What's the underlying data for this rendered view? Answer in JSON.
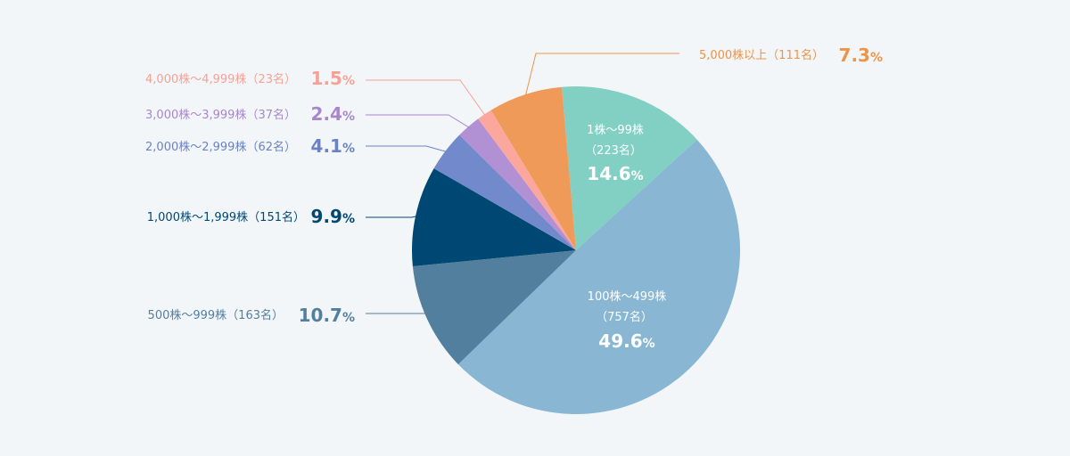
{
  "chart_data": {
    "type": "pie",
    "title": "",
    "start_angle_deg": -5,
    "direction": "clockwise",
    "slices": [
      {
        "key": "s1",
        "name": "1株～99株",
        "count": "（223名）",
        "value": 14.6,
        "pct_label": "14.6",
        "unit": "%",
        "color": "#82d0c4",
        "label_color": "#ffffff",
        "placement": "inside"
      },
      {
        "key": "s2",
        "name": "100株～499株",
        "count": "（757名）",
        "value": 49.6,
        "pct_label": "49.6",
        "unit": "%",
        "color": "#88b6d3",
        "label_color": "#ffffff",
        "placement": "inside"
      },
      {
        "key": "s3",
        "name": "500株～999株（163名）",
        "count": "",
        "value": 10.7,
        "pct_label": "10.7",
        "unit": "%",
        "color": "#527f9e",
        "label_color": "#527f9e",
        "placement": "outside-left"
      },
      {
        "key": "s4",
        "name": "1,000株～1,999株（151名）",
        "count": "",
        "value": 9.9,
        "pct_label": "9.9",
        "unit": "%",
        "color": "#004874",
        "label_color": "#004874",
        "placement": "outside-left"
      },
      {
        "key": "s5",
        "name": "2,000株～2,999株（62名）",
        "count": "",
        "value": 4.1,
        "pct_label": "4.1",
        "unit": "%",
        "color": "#7289cb",
        "label_color": "#6a82c4",
        "placement": "outside-left"
      },
      {
        "key": "s6",
        "name": "3,000株～3,999株（37名）",
        "count": "",
        "value": 2.4,
        "pct_label": "2.4",
        "unit": "%",
        "color": "#b290d4",
        "label_color": "#a886cc",
        "placement": "outside-left"
      },
      {
        "key": "s7",
        "name": "4,000株～4,999株（23名）",
        "count": "",
        "value": 1.5,
        "pct_label": "1.5",
        "unit": "%",
        "color": "#fca79d",
        "label_color": "#f7a096",
        "placement": "outside-left"
      },
      {
        "key": "s8",
        "name": "5,000株以上（111名）",
        "count": "",
        "value": 7.3,
        "pct_label": "7.3",
        "unit": "%",
        "color": "#ef9a58",
        "label_color": "#ec9448",
        "placement": "outside-right"
      }
    ]
  }
}
